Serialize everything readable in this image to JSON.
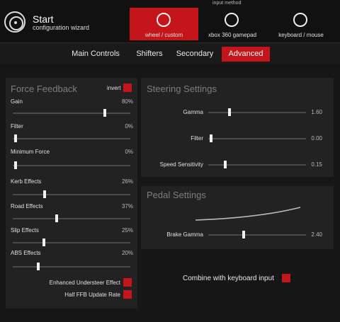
{
  "app": {
    "title": "Start",
    "subtitle": "configuration wizard"
  },
  "input_method": {
    "label": "input method",
    "options": [
      {
        "label": "wheel / custom",
        "icon": "steering-wheel-icon",
        "active": true
      },
      {
        "label": "xbox 360 gamepad",
        "icon": "gamepad-icon",
        "active": false
      },
      {
        "label": "keyboard / mouse",
        "icon": "keyboard-icon",
        "active": false
      }
    ]
  },
  "tabs": [
    {
      "label": "Main Controls",
      "active": false
    },
    {
      "label": "Shifters",
      "active": false
    },
    {
      "label": "Secondary",
      "active": false
    },
    {
      "label": "Advanced",
      "active": true
    }
  ],
  "force_feedback": {
    "title": "Force Feedback",
    "invert_label": "invert",
    "invert_checked": true,
    "sliders": [
      {
        "label": "Gain",
        "value": "80%",
        "fraction": 0.8
      },
      {
        "label": "Filter",
        "value": "0%",
        "fraction": 0.0
      },
      {
        "label": "Minimum Force",
        "value": "0%",
        "fraction": 0.0
      },
      {
        "label": "Kerb Effects",
        "value": "26%",
        "fraction": 0.26
      },
      {
        "label": "Road Effects",
        "value": "37%",
        "fraction": 0.37
      },
      {
        "label": "Slip Effects",
        "value": "25%",
        "fraction": 0.25
      },
      {
        "label": "ABS Effects",
        "value": "20%",
        "fraction": 0.2
      }
    ],
    "options": [
      {
        "label": "Enhanced Understeer Effect",
        "checked": true
      },
      {
        "label": "Half FFB Update Rate",
        "checked": true
      }
    ]
  },
  "steering": {
    "title": "Steering Settings",
    "sliders": [
      {
        "label": "Gamma",
        "value": "1.60",
        "fraction": 0.2
      },
      {
        "label": "Filter",
        "value": "0.00",
        "fraction": 0.0
      },
      {
        "label": "Speed Sensitivity",
        "value": "0.15",
        "fraction": 0.15
      }
    ]
  },
  "pedal": {
    "title": "Pedal Settings",
    "sliders": [
      {
        "label": "Brake Gamma",
        "value": "2.40",
        "fraction": 0.35
      }
    ]
  },
  "combine": {
    "label": "Combine with keyboard input",
    "checked": true
  },
  "colors": {
    "accent": "#c4151b",
    "panel": "#222222",
    "background": "#161616"
  }
}
